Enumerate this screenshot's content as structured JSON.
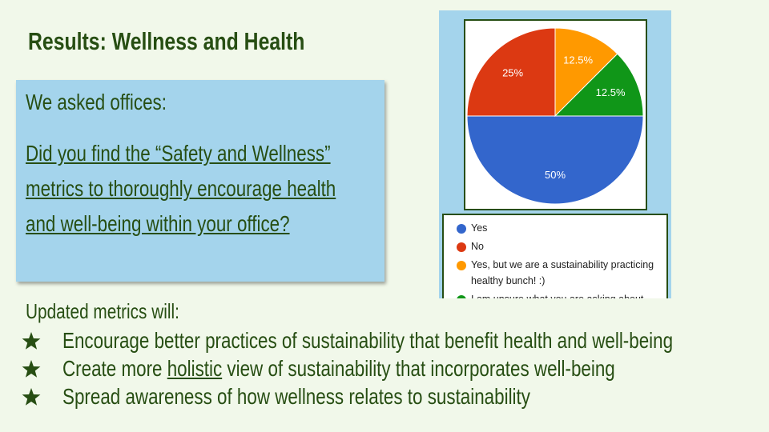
{
  "title": "Results: Wellness and Health",
  "question_box": {
    "intro": "We asked offices:",
    "question": "Did you find the “Safety and Wellness” metrics to thoroughly encourage health and well-being within your office?"
  },
  "bullets": {
    "lead": "Updated metrics will:",
    "items": [
      [
        "Encourage better practices of sustainability that benefit health and well-being"
      ],
      [
        "Create more ",
        "holistic",
        " view of sustainability that incorporates well-being"
      ],
      [
        "Spread awareness of how wellness relates to sustainability"
      ]
    ]
  },
  "chart_data": {
    "type": "pie",
    "categories": [
      "Yes",
      "No",
      "Yes, but we are a sustainability practicing healthy bunch! :)",
      "I am unsure what you are asking about"
    ],
    "values": [
      50,
      25,
      12.5,
      12.5
    ],
    "value_labels": [
      "50%",
      "25%",
      "12.5%",
      "12.5%"
    ],
    "colors": [
      "#3366cc",
      "#dc3912",
      "#ff9900",
      "#109618"
    ],
    "legend": "bottom"
  }
}
